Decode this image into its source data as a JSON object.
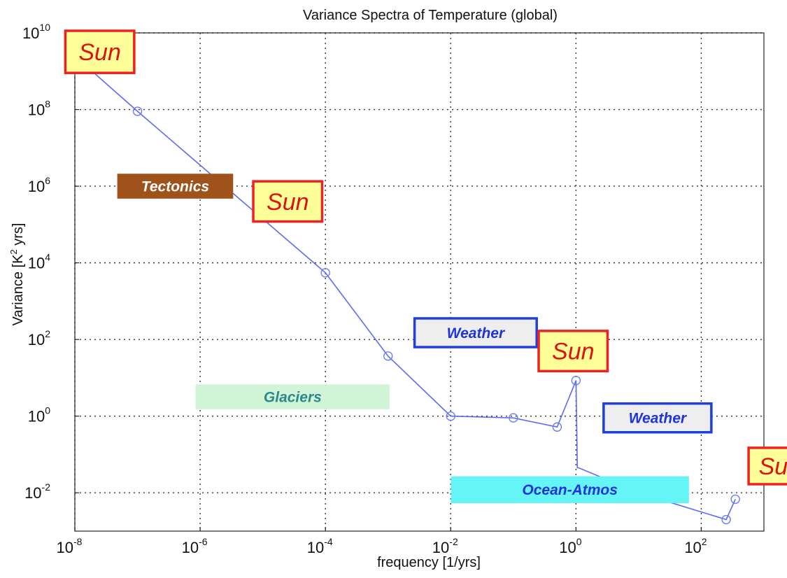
{
  "chart_data": {
    "type": "line",
    "title": "Variance Spectra of Temperature (global)",
    "xlabel": "frequency [1/yrs]",
    "ylabel_prefix": "Variance [K",
    "ylabel_sup": "2",
    "ylabel_suffix": " yrs]",
    "x_scale": "log",
    "y_scale": "log",
    "xlim": [
      1e-08,
      1000
    ],
    "ylim": [
      0.001,
      10000000000.0
    ],
    "grid": true,
    "x_ticks": [
      {
        "base": "10",
        "exp": "-8",
        "value": 1e-08
      },
      {
        "base": "10",
        "exp": "-6",
        "value": 1e-06
      },
      {
        "base": "10",
        "exp": "-4",
        "value": 0.0001
      },
      {
        "base": "10",
        "exp": "-2",
        "value": 0.01
      },
      {
        "base": "10",
        "exp": "0",
        "value": 1
      },
      {
        "base": "10",
        "exp": "2",
        "value": 100
      }
    ],
    "y_ticks": [
      {
        "base": "10",
        "exp": "10",
        "value": 10000000000.0
      },
      {
        "base": "10",
        "exp": "8",
        "value": 100000000.0
      },
      {
        "base": "10",
        "exp": "6",
        "value": 1000000.0
      },
      {
        "base": "10",
        "exp": "4",
        "value": 10000.0
      },
      {
        "base": "10",
        "exp": "2",
        "value": 100
      },
      {
        "base": "10",
        "exp": "0",
        "value": 1
      },
      {
        "base": "10",
        "exp": "-2",
        "value": 0.01
      }
    ],
    "series": [
      {
        "color": "#5b6cf0",
        "points": [
          {
            "x": 1e-08,
            "y": 2500000000.0,
            "marker": true
          },
          {
            "x": 1e-07,
            "y": 90000000.0,
            "marker": true
          },
          {
            "x": 0.0001,
            "y": 5500,
            "marker": true
          },
          {
            "x": 0.001,
            "y": 37,
            "marker": true
          },
          {
            "x": 0.01,
            "y": 1.0,
            "marker": true
          },
          {
            "x": 0.1,
            "y": 0.9,
            "marker": true
          },
          {
            "x": 0.5,
            "y": 0.52,
            "marker": true
          },
          {
            "x": 1.0,
            "y": 8.5,
            "marker": true
          },
          {
            "x": 1.05,
            "y": 0.045,
            "marker": false
          },
          {
            "x": 1.1,
            "y": 0.045,
            "marker": false
          },
          {
            "x": 10,
            "y": 0.01,
            "marker": false
          },
          {
            "x": 250,
            "y": 0.002,
            "marker": true
          },
          {
            "x": 350,
            "y": 0.0068,
            "marker": true
          }
        ]
      }
    ],
    "annotations": [
      {
        "text": "Sun",
        "style": "sun",
        "cx_freq": 2.5e-08,
        "cy_var": 3200000000.0,
        "w_dec": 1.1,
        "h_dec": 1.1,
        "fill": "#ffff99",
        "border": "#ee2222",
        "color": "#dd1111"
      },
      {
        "text": "Tectonics",
        "style": "solid",
        "cx_freq": 4e-07,
        "cy_var": 1000000.0,
        "w_dec": 1.85,
        "h_dec": 0.65,
        "fill": "#a0521b",
        "border": "#a0521b",
        "color": "#ffffff"
      },
      {
        "text": "Sun",
        "style": "sun",
        "cx_freq": 2.5e-05,
        "cy_var": 400000.0,
        "w_dec": 1.1,
        "h_dec": 1.05,
        "fill": "#ffff99",
        "border": "#ee2222",
        "color": "#dd1111"
      },
      {
        "text": "Weather",
        "style": "outline",
        "cx_freq": 0.025,
        "cy_var": 150,
        "w_dec": 1.95,
        "h_dec": 0.75,
        "fill": "#eeeeee",
        "border": "#1f3fe0",
        "color": "#1f33dd"
      },
      {
        "text": "Glaciers",
        "style": "solid",
        "cx_freq": 3e-05,
        "cy_var": 3.2,
        "w_dec": 3.1,
        "h_dec": 0.65,
        "fill": "#d2f5d8",
        "border": "#d2f5d8",
        "color": "#2a8a8a"
      },
      {
        "text": "Sun",
        "style": "sun",
        "cx_freq": 0.9,
        "cy_var": 50,
        "w_dec": 1.1,
        "h_dec": 1.05,
        "fill": "#ffff99",
        "border": "#ee2222",
        "color": "#dd1111"
      },
      {
        "text": "Weather",
        "style": "outline",
        "cx_freq": 20,
        "cy_var": 0.9,
        "w_dec": 1.72,
        "h_dec": 0.75,
        "fill": "#eeeeee",
        "border": "#1f3fe0",
        "color": "#1f33dd"
      },
      {
        "text": "Sun",
        "style": "sun",
        "cx_freq": 1800,
        "cy_var": 0.05,
        "w_dec": 1.0,
        "h_dec": 0.95,
        "fill": "#ffff99",
        "border": "#ee2222",
        "color": "#dd1111"
      },
      {
        "text": "Ocean-Atmos",
        "style": "solid",
        "cx_freq": 0.8,
        "cy_var": 0.012,
        "w_dec": 3.8,
        "h_dec": 0.7,
        "fill": "#66f5f7",
        "border": "#66f5f7",
        "color": "#1f33dd"
      }
    ]
  }
}
